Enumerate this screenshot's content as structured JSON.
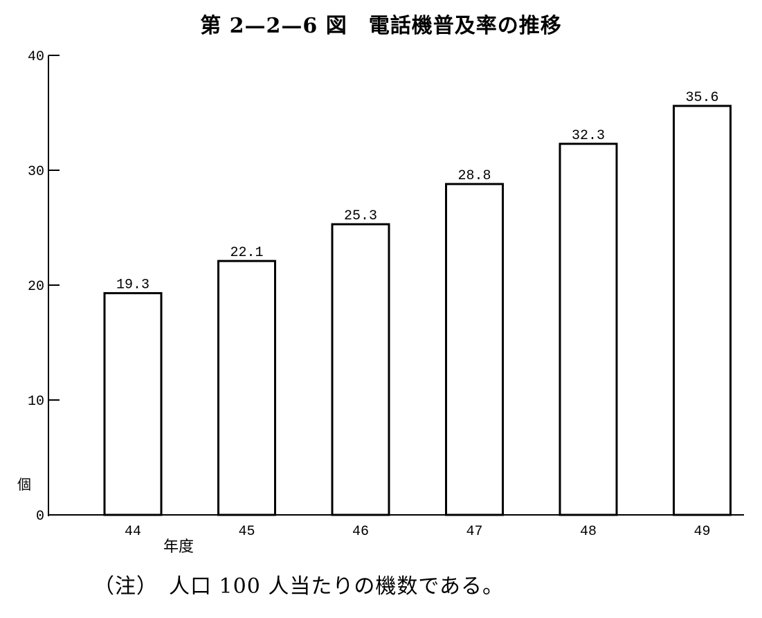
{
  "chart_data": {
    "type": "bar",
    "title": "第 2—2—6 図　電話機普及率の推移",
    "ylabel": "個",
    "xlabel": "年度",
    "categories": [
      "44",
      "45",
      "46",
      "47",
      "48",
      "49"
    ],
    "values": [
      19.3,
      22.1,
      25.3,
      28.8,
      32.3,
      35.6
    ],
    "value_labels": [
      "19.3",
      "22.1",
      "25.3",
      "28.8",
      "32.3",
      "35.6"
    ],
    "ylim": [
      0,
      40
    ],
    "yticks": [
      0,
      10,
      20,
      30,
      40
    ],
    "ytick_labels": [
      "0",
      "10",
      "20",
      "30",
      "40"
    ],
    "grid": false,
    "bar_fill": "#ffffff",
    "bar_stroke": "#000000"
  },
  "footnote": "（注）　人口 100 人当たりの機数である。"
}
